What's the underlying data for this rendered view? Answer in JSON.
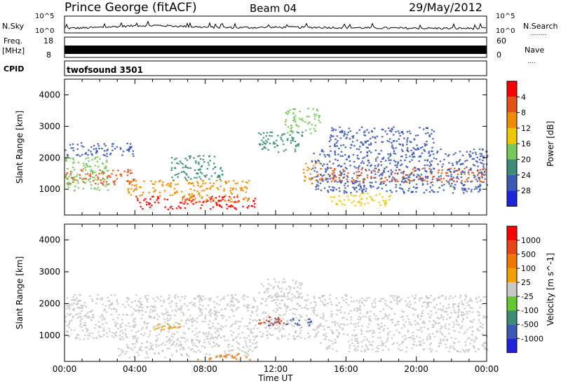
{
  "header": {
    "station": "Prince George (fitACF)",
    "beam": "Beam 04",
    "date": "29/May/2012"
  },
  "noise_panel": {
    "left_label": "N.Sky",
    "right_label": "N.Search",
    "right_legend": "........",
    "y_top_label": "10^5",
    "y_bottom_label": "10^0"
  },
  "freq_panel": {
    "left_label_1": "Freq.",
    "left_label_2": "[MHz]",
    "y_top_label": "18",
    "y_bottom_label": "8",
    "right_top_label": "60",
    "right_bottom_label": "0",
    "right_label": "Nave",
    "right_legend": "...."
  },
  "cpid": {
    "label": "CPID",
    "value": "twofsound 3501"
  },
  "chart_data": [
    {
      "type": "heatmap",
      "title": "",
      "ylabel": "Slant Range [km]",
      "xlabel": "",
      "ylim": [
        180,
        4500
      ],
      "xlim_hours": [
        0,
        24
      ],
      "yticks": [
        1000,
        2000,
        3000,
        4000
      ],
      "colorbar": {
        "label": "Power [dB]",
        "ticks": [
          "4",
          "8",
          "12",
          "16",
          "20",
          "24",
          "28"
        ],
        "colors": [
          "#1e23dc",
          "#3c5ab4",
          "#3c8c78",
          "#78c85a",
          "#f0c800",
          "#f08c00",
          "#e65014",
          "#ff0000"
        ]
      },
      "bands": [
        {
          "t0": 0.0,
          "t1": 4.0,
          "r0": 1150,
          "r1": 1650,
          "level": 6
        },
        {
          "t0": 0.0,
          "t1": 2.5,
          "r0": 950,
          "r1": 2050,
          "level": 3
        },
        {
          "t0": 0.0,
          "t1": 4.0,
          "r0": 2050,
          "r1": 2500,
          "level": 1
        },
        {
          "t0": 3.5,
          "t1": 6.5,
          "r0": 800,
          "r1": 1300,
          "level": 5
        },
        {
          "t0": 4.0,
          "t1": 10.8,
          "r0": 380,
          "r1": 800,
          "level": 7
        },
        {
          "t0": 6.5,
          "t1": 10.5,
          "r0": 600,
          "r1": 1300,
          "level": 5
        },
        {
          "t0": 6.0,
          "t1": 9.0,
          "r0": 1300,
          "r1": 2100,
          "level": 2
        },
        {
          "t0": 11.0,
          "t1": 13.5,
          "r0": 2200,
          "r1": 2900,
          "level": 2
        },
        {
          "t0": 13.5,
          "t1": 14.5,
          "r0": 1200,
          "r1": 1900,
          "level": 5
        },
        {
          "t0": 14.5,
          "t1": 24.0,
          "r0": 1250,
          "r1": 1700,
          "level": 6
        },
        {
          "t0": 14.0,
          "t1": 24.0,
          "r0": 900,
          "r1": 2300,
          "level": 1
        },
        {
          "t0": 15.0,
          "t1": 18.5,
          "r0": 500,
          "r1": 900,
          "level": 4
        },
        {
          "t0": 15.0,
          "t1": 21.0,
          "r0": 2300,
          "r1": 3000,
          "level": 1
        },
        {
          "t0": 12.5,
          "t1": 14.5,
          "r0": 2800,
          "r1": 3600,
          "level": 3
        }
      ]
    },
    {
      "type": "heatmap",
      "title": "",
      "ylabel": "Slant Range [km]",
      "xlabel": "Time UT",
      "ylim": [
        180,
        4500
      ],
      "xlim_hours": [
        0,
        24
      ],
      "yticks": [
        1000,
        2000,
        3000,
        4000
      ],
      "xticks": [
        "00:00",
        "04:00",
        "08:00",
        "12:00",
        "16:00",
        "20:00",
        "00:00"
      ],
      "colorbar": {
        "label": "Velocity [m s^-1]",
        "ticks": [
          "1000",
          "500",
          "100",
          "25",
          "-25",
          "-100",
          "-500",
          "-1000"
        ],
        "colors": [
          "#1e23dc",
          "#3c5ab4",
          "#3c8c78",
          "#64c832",
          "#c8c8c8",
          "#f0a000",
          "#f07800",
          "#e64614",
          "#ff0000"
        ]
      },
      "bands": [
        {
          "t0": 0.0,
          "t1": 24.0,
          "r0": 900,
          "r1": 2300,
          "level": 4
        },
        {
          "t0": 3.0,
          "t1": 11.0,
          "r0": 300,
          "r1": 900,
          "level": 4
        },
        {
          "t0": 11.0,
          "t1": 13.5,
          "r0": 2100,
          "r1": 2800,
          "level": 4
        },
        {
          "t0": 7.5,
          "t1": 10.5,
          "r0": 250,
          "r1": 450,
          "level": 6
        },
        {
          "t0": 5.0,
          "t1": 6.5,
          "r0": 1200,
          "r1": 1400,
          "level": 5
        },
        {
          "t0": 11.5,
          "t1": 14.0,
          "r0": 1300,
          "r1": 1600,
          "level": 1
        },
        {
          "t0": 11.0,
          "t1": 12.5,
          "r0": 1350,
          "r1": 1600,
          "level": 7
        },
        {
          "t0": 14.5,
          "t1": 24.0,
          "r0": 500,
          "r1": 900,
          "level": 4
        }
      ]
    }
  ]
}
